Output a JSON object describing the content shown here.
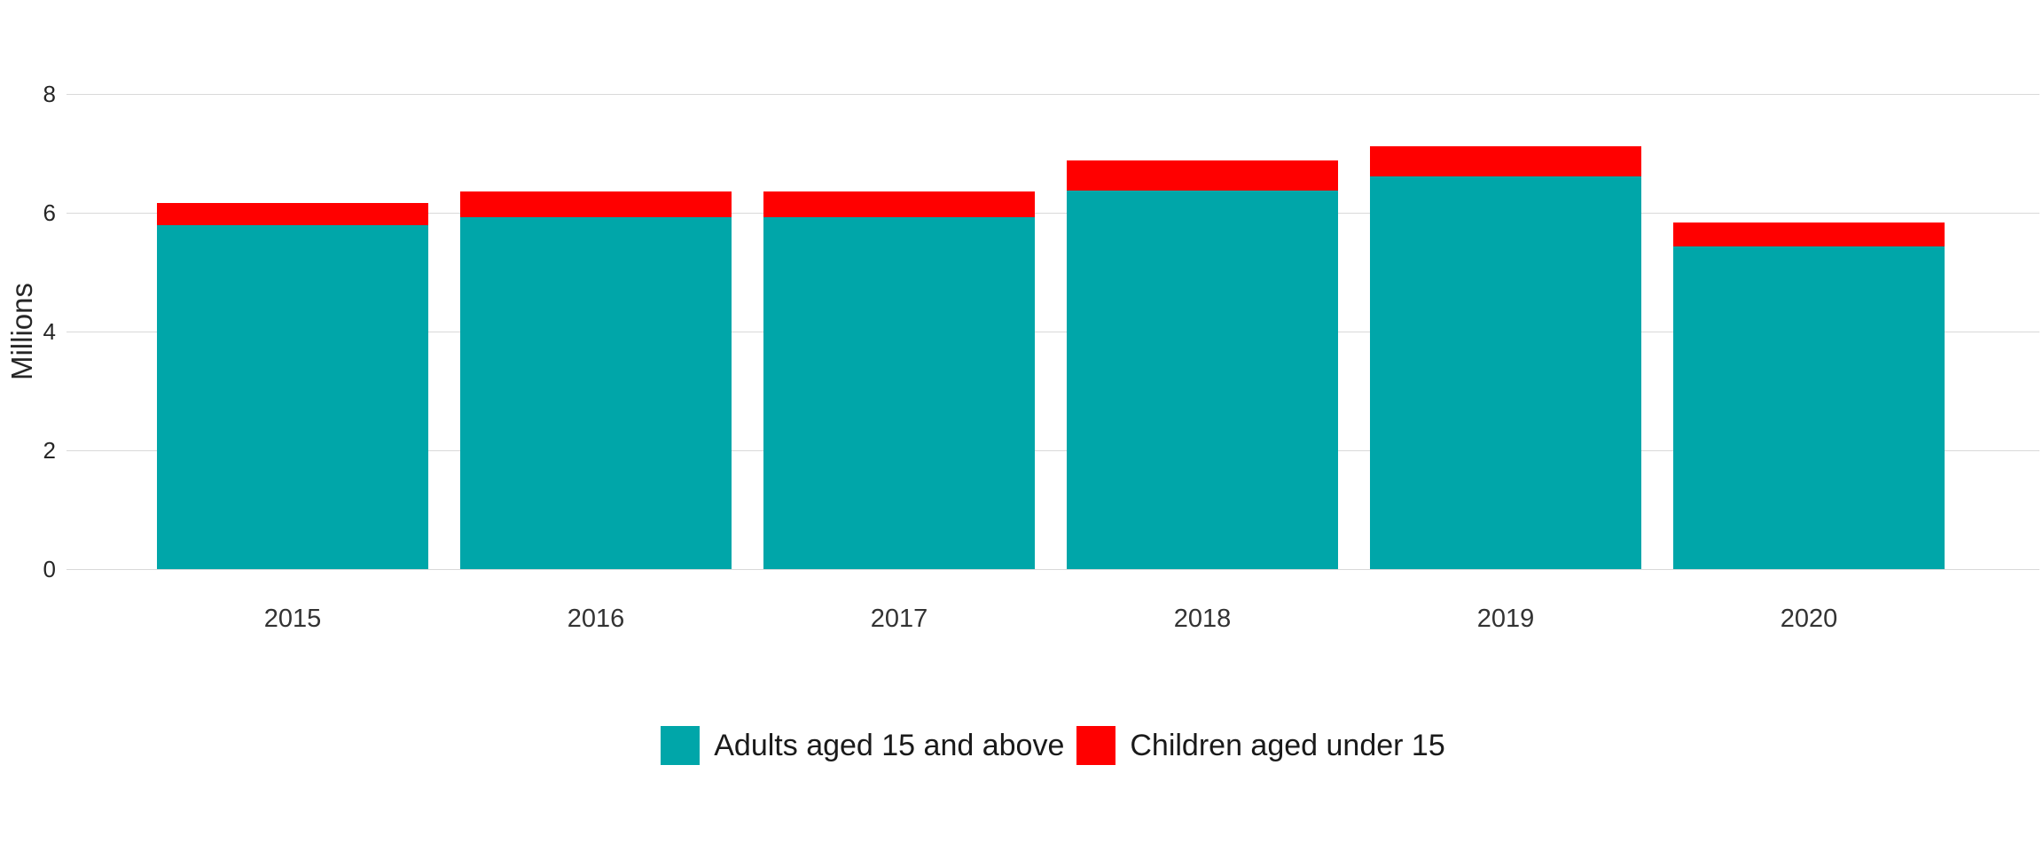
{
  "chart_data": {
    "type": "bar",
    "stacked": true,
    "title": "",
    "xlabel": "",
    "ylabel": "Millions",
    "categories": [
      "2015",
      "2016",
      "2017",
      "2018",
      "2019",
      "2020"
    ],
    "series": [
      {
        "name": "Adults aged 15 and above",
        "key": "adults",
        "color": "#00a6a9",
        "values": [
          5.79,
          5.93,
          5.92,
          6.37,
          6.61,
          5.43
        ]
      },
      {
        "name": "Children aged under 15",
        "key": "children",
        "color": "#ff0000",
        "values": [
          0.37,
          0.43,
          0.44,
          0.51,
          0.51,
          0.41
        ]
      }
    ],
    "totals": [
      6.16,
      6.36,
      6.36,
      6.88,
      7.12,
      5.84
    ],
    "ylim": [
      0,
      8
    ],
    "yticks": [
      0,
      2,
      4,
      6,
      8
    ],
    "grid": true,
    "legend_position": "bottom"
  },
  "colors": {
    "gridline": "#d9d9d9",
    "tick_text": "#333333",
    "axis_title_text": "#262626",
    "legend_text": "#1a1a1a",
    "background": "#ffffff"
  }
}
